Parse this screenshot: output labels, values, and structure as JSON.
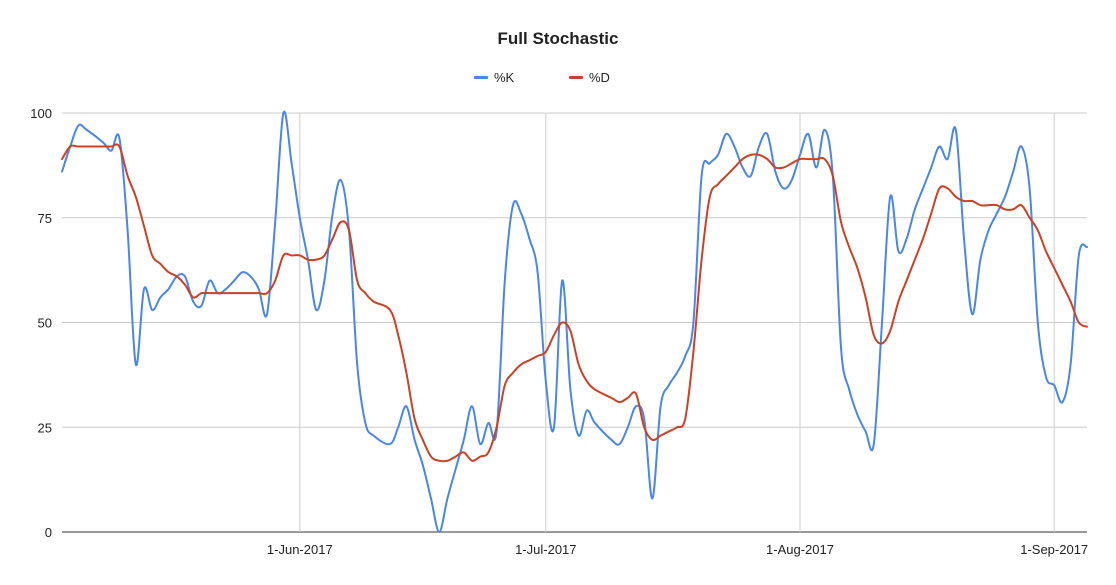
{
  "chart_data": {
    "type": "line",
    "title": "Full Stochastic",
    "xlabel": "",
    "ylabel": "",
    "ylim": [
      0,
      100
    ],
    "yticks": [
      0,
      25,
      50,
      75,
      100
    ],
    "xlim": [
      "2017-05-03",
      "2017-09-05"
    ],
    "xticks": [
      {
        "date": "2017-06-01",
        "label": "1-Jun-2017"
      },
      {
        "date": "2017-07-01",
        "label": "1-Jul-2017"
      },
      {
        "date": "2017-08-01",
        "label": "1-Aug-2017"
      },
      {
        "date": "2017-09-01",
        "label": "1-Sep-2017"
      }
    ],
    "grid": true,
    "legend_position": "top",
    "series": [
      {
        "name": "%K",
        "color": "#4a86e8",
        "points": [
          [
            "2017-05-03",
            86
          ],
          [
            "2017-05-04",
            92
          ],
          [
            "2017-05-05",
            97
          ],
          [
            "2017-05-06",
            96
          ],
          [
            "2017-05-08",
            93
          ],
          [
            "2017-05-09",
            91
          ],
          [
            "2017-05-10",
            94
          ],
          [
            "2017-05-11",
            72
          ],
          [
            "2017-05-12",
            40
          ],
          [
            "2017-05-13",
            58
          ],
          [
            "2017-05-14",
            53
          ],
          [
            "2017-05-15",
            56
          ],
          [
            "2017-05-16",
            58
          ],
          [
            "2017-05-17",
            61
          ],
          [
            "2017-05-18",
            61
          ],
          [
            "2017-05-19",
            55
          ],
          [
            "2017-05-20",
            54
          ],
          [
            "2017-05-21",
            60
          ],
          [
            "2017-05-22",
            57
          ],
          [
            "2017-05-23",
            58
          ],
          [
            "2017-05-24",
            60
          ],
          [
            "2017-05-25",
            62
          ],
          [
            "2017-05-26",
            61
          ],
          [
            "2017-05-27",
            58
          ],
          [
            "2017-05-28",
            52
          ],
          [
            "2017-05-29",
            74
          ],
          [
            "2017-05-30",
            100
          ],
          [
            "2017-05-31",
            88
          ],
          [
            "2017-06-01",
            75
          ],
          [
            "2017-06-02",
            65
          ],
          [
            "2017-06-03",
            53
          ],
          [
            "2017-06-04",
            60
          ],
          [
            "2017-06-05",
            76
          ],
          [
            "2017-06-06",
            84
          ],
          [
            "2017-06-07",
            72
          ],
          [
            "2017-06-08",
            40
          ],
          [
            "2017-06-09",
            26
          ],
          [
            "2017-06-10",
            23
          ],
          [
            "2017-06-12",
            21
          ],
          [
            "2017-06-13",
            25
          ],
          [
            "2017-06-14",
            30
          ],
          [
            "2017-06-15",
            22
          ],
          [
            "2017-06-16",
            16
          ],
          [
            "2017-06-17",
            8
          ],
          [
            "2017-06-18",
            0
          ],
          [
            "2017-06-19",
            8
          ],
          [
            "2017-06-20",
            15
          ],
          [
            "2017-06-21",
            22
          ],
          [
            "2017-06-22",
            30
          ],
          [
            "2017-06-23",
            21
          ],
          [
            "2017-06-24",
            26
          ],
          [
            "2017-06-25",
            24
          ],
          [
            "2017-06-26",
            60
          ],
          [
            "2017-06-27",
            78
          ],
          [
            "2017-06-28",
            76
          ],
          [
            "2017-06-29",
            70
          ],
          [
            "2017-06-30",
            62
          ],
          [
            "2017-07-01",
            36
          ],
          [
            "2017-07-02",
            25
          ],
          [
            "2017-07-03",
            60
          ],
          [
            "2017-07-04",
            34
          ],
          [
            "2017-07-05",
            23
          ],
          [
            "2017-07-06",
            29
          ],
          [
            "2017-07-07",
            26
          ],
          [
            "2017-07-09",
            22
          ],
          [
            "2017-07-10",
            21
          ],
          [
            "2017-07-11",
            25
          ],
          [
            "2017-07-12",
            30
          ],
          [
            "2017-07-13",
            27
          ],
          [
            "2017-07-14",
            8
          ],
          [
            "2017-07-15",
            30
          ],
          [
            "2017-07-16",
            35
          ],
          [
            "2017-07-17",
            38
          ],
          [
            "2017-07-18",
            42
          ],
          [
            "2017-07-19",
            50
          ],
          [
            "2017-07-20",
            85
          ],
          [
            "2017-07-21",
            88
          ],
          [
            "2017-07-22",
            90
          ],
          [
            "2017-07-23",
            95
          ],
          [
            "2017-07-24",
            92
          ],
          [
            "2017-07-25",
            87
          ],
          [
            "2017-07-26",
            85
          ],
          [
            "2017-07-27",
            92
          ],
          [
            "2017-07-28",
            95
          ],
          [
            "2017-07-29",
            86
          ],
          [
            "2017-07-30",
            82
          ],
          [
            "2017-07-31",
            84
          ],
          [
            "2017-08-01",
            90
          ],
          [
            "2017-08-02",
            95
          ],
          [
            "2017-08-03",
            87
          ],
          [
            "2017-08-04",
            96
          ],
          [
            "2017-08-05",
            85
          ],
          [
            "2017-08-06",
            44
          ],
          [
            "2017-08-07",
            34
          ],
          [
            "2017-08-08",
            28
          ],
          [
            "2017-08-09",
            24
          ],
          [
            "2017-08-10",
            21
          ],
          [
            "2017-08-11",
            50
          ],
          [
            "2017-08-12",
            80
          ],
          [
            "2017-08-13",
            67
          ],
          [
            "2017-08-14",
            70
          ],
          [
            "2017-08-15",
            77
          ],
          [
            "2017-08-16",
            82
          ],
          [
            "2017-08-17",
            87
          ],
          [
            "2017-08-18",
            92
          ],
          [
            "2017-08-19",
            89
          ],
          [
            "2017-08-20",
            96
          ],
          [
            "2017-08-21",
            70
          ],
          [
            "2017-08-22",
            52
          ],
          [
            "2017-08-23",
            65
          ],
          [
            "2017-08-24",
            72
          ],
          [
            "2017-08-25",
            76
          ],
          [
            "2017-08-26",
            80
          ],
          [
            "2017-08-27",
            86
          ],
          [
            "2017-08-28",
            92
          ],
          [
            "2017-08-29",
            82
          ],
          [
            "2017-08-30",
            50
          ],
          [
            "2017-08-31",
            37
          ],
          [
            "2017-09-01",
            35
          ],
          [
            "2017-09-02",
            31
          ],
          [
            "2017-09-03",
            40
          ],
          [
            "2017-09-04",
            66
          ],
          [
            "2017-09-05",
            68
          ]
        ]
      },
      {
        "name": "%D",
        "color": "#cc4125",
        "points": [
          [
            "2017-05-03",
            89
          ],
          [
            "2017-05-04",
            92
          ],
          [
            "2017-05-05",
            92
          ],
          [
            "2017-05-06",
            92
          ],
          [
            "2017-05-08",
            92
          ],
          [
            "2017-05-09",
            92
          ],
          [
            "2017-05-10",
            92
          ],
          [
            "2017-05-11",
            85
          ],
          [
            "2017-05-12",
            80
          ],
          [
            "2017-05-13",
            73
          ],
          [
            "2017-05-14",
            66
          ],
          [
            "2017-05-15",
            64
          ],
          [
            "2017-05-16",
            62
          ],
          [
            "2017-05-17",
            61
          ],
          [
            "2017-05-18",
            59
          ],
          [
            "2017-05-19",
            56
          ],
          [
            "2017-05-20",
            57
          ],
          [
            "2017-05-21",
            57
          ],
          [
            "2017-05-22",
            57
          ],
          [
            "2017-05-23",
            57
          ],
          [
            "2017-05-24",
            57
          ],
          [
            "2017-05-25",
            57
          ],
          [
            "2017-05-26",
            57
          ],
          [
            "2017-05-27",
            57
          ],
          [
            "2017-05-28",
            57
          ],
          [
            "2017-05-29",
            60
          ],
          [
            "2017-05-30",
            66
          ],
          [
            "2017-05-31",
            66
          ],
          [
            "2017-06-01",
            66
          ],
          [
            "2017-06-02",
            65
          ],
          [
            "2017-06-03",
            65
          ],
          [
            "2017-06-04",
            66
          ],
          [
            "2017-06-05",
            70
          ],
          [
            "2017-06-06",
            74
          ],
          [
            "2017-06-07",
            72
          ],
          [
            "2017-06-08",
            60
          ],
          [
            "2017-06-09",
            57
          ],
          [
            "2017-06-10",
            55
          ],
          [
            "2017-06-12",
            53
          ],
          [
            "2017-06-13",
            47
          ],
          [
            "2017-06-14",
            38
          ],
          [
            "2017-06-15",
            27
          ],
          [
            "2017-06-16",
            22
          ],
          [
            "2017-06-17",
            18
          ],
          [
            "2017-06-18",
            17
          ],
          [
            "2017-06-19",
            17
          ],
          [
            "2017-06-20",
            18
          ],
          [
            "2017-06-21",
            19
          ],
          [
            "2017-06-22",
            17
          ],
          [
            "2017-06-23",
            18
          ],
          [
            "2017-06-24",
            19
          ],
          [
            "2017-06-25",
            25
          ],
          [
            "2017-06-26",
            35
          ],
          [
            "2017-06-27",
            38
          ],
          [
            "2017-06-28",
            40
          ],
          [
            "2017-06-29",
            41
          ],
          [
            "2017-06-30",
            42
          ],
          [
            "2017-07-01",
            43
          ],
          [
            "2017-07-02",
            47
          ],
          [
            "2017-07-03",
            50
          ],
          [
            "2017-07-04",
            48
          ],
          [
            "2017-07-05",
            40
          ],
          [
            "2017-07-06",
            36
          ],
          [
            "2017-07-07",
            34
          ],
          [
            "2017-07-09",
            32
          ],
          [
            "2017-07-10",
            31
          ],
          [
            "2017-07-11",
            32
          ],
          [
            "2017-07-12",
            33
          ],
          [
            "2017-07-13",
            25
          ],
          [
            "2017-07-14",
            22
          ],
          [
            "2017-07-15",
            23
          ],
          [
            "2017-07-16",
            24
          ],
          [
            "2017-07-17",
            25
          ],
          [
            "2017-07-18",
            27
          ],
          [
            "2017-07-19",
            43
          ],
          [
            "2017-07-20",
            65
          ],
          [
            "2017-07-21",
            80
          ],
          [
            "2017-07-22",
            83
          ],
          [
            "2017-07-23",
            85
          ],
          [
            "2017-07-24",
            87
          ],
          [
            "2017-07-25",
            89
          ],
          [
            "2017-07-26",
            90
          ],
          [
            "2017-07-27",
            90
          ],
          [
            "2017-07-28",
            89
          ],
          [
            "2017-07-29",
            87
          ],
          [
            "2017-07-30",
            87
          ],
          [
            "2017-07-31",
            88
          ],
          [
            "2017-08-01",
            89
          ],
          [
            "2017-08-02",
            89
          ],
          [
            "2017-08-03",
            89
          ],
          [
            "2017-08-04",
            89
          ],
          [
            "2017-08-05",
            85
          ],
          [
            "2017-08-06",
            74
          ],
          [
            "2017-08-07",
            68
          ],
          [
            "2017-08-08",
            63
          ],
          [
            "2017-08-09",
            56
          ],
          [
            "2017-08-10",
            47
          ],
          [
            "2017-08-11",
            45
          ],
          [
            "2017-08-12",
            48
          ],
          [
            "2017-08-13",
            55
          ],
          [
            "2017-08-14",
            60
          ],
          [
            "2017-08-15",
            65
          ],
          [
            "2017-08-16",
            70
          ],
          [
            "2017-08-17",
            76
          ],
          [
            "2017-08-18",
            82
          ],
          [
            "2017-08-19",
            82
          ],
          [
            "2017-08-20",
            80
          ],
          [
            "2017-08-21",
            79
          ],
          [
            "2017-08-22",
            79
          ],
          [
            "2017-08-23",
            78
          ],
          [
            "2017-08-24",
            78
          ],
          [
            "2017-08-25",
            78
          ],
          [
            "2017-08-26",
            77
          ],
          [
            "2017-08-27",
            77
          ],
          [
            "2017-08-28",
            78
          ],
          [
            "2017-08-29",
            75
          ],
          [
            "2017-08-30",
            72
          ],
          [
            "2017-08-31",
            67
          ],
          [
            "2017-09-01",
            63
          ],
          [
            "2017-09-02",
            59
          ],
          [
            "2017-09-03",
            55
          ],
          [
            "2017-09-04",
            50
          ],
          [
            "2017-09-05",
            49
          ]
        ]
      }
    ]
  }
}
